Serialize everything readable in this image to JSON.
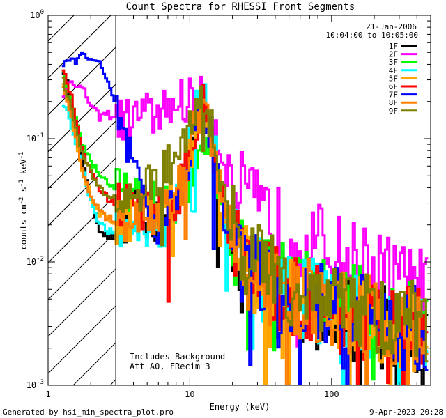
{
  "chart_data": {
    "type": "line",
    "title": "Count Spectra for RHESSI Front Segments",
    "xlabel": "Energy (keV)",
    "ylabel_main": "counts cm",
    "ylabel_sup1": "-2",
    "ylabel_mid": " s",
    "ylabel_sup2": "-1",
    "ylabel_end": " keV",
    "ylabel_sup3": "-1",
    "xscale": "log",
    "yscale": "log",
    "xlim": [
      1,
      500
    ],
    "ylim": [
      0.001,
      1
    ],
    "x_ticks": [
      {
        "value": 1,
        "label": "1"
      },
      {
        "value": 10,
        "label": "10"
      },
      {
        "value": 100,
        "label": "100"
      }
    ],
    "y_ticks": [
      {
        "value": 0.001,
        "mant": "10",
        "exp": "-3"
      },
      {
        "value": 0.01,
        "mant": "10",
        "exp": "-2"
      },
      {
        "value": 0.1,
        "mant": "10",
        "exp": "-1"
      },
      {
        "value": 1,
        "mant": "10",
        "exp": "0"
      }
    ],
    "date": "21-Jan-2006",
    "time_range": "10:04:00 to 10:05:00",
    "shaded_region_xmax": 3,
    "annotation_line1": "Includes Background",
    "annotation_line2": "Att A0, FRecim 3",
    "footer_left": "Generated by hsi_min_spectra_plot.pro",
    "footer_right": "9-Apr-2023 20:28",
    "series": [
      {
        "name": "1F",
        "color": "#000000",
        "values": [
          0.38,
          0.25,
          0.12,
          0.06,
          0.03,
          0.019,
          0.016,
          0.016,
          0.017,
          0.021,
          0.026,
          0.024,
          0.021,
          0.019,
          0.022,
          0.027,
          0.04,
          0.07,
          0.14,
          0.21,
          0.12,
          0.05,
          0.024,
          0.014,
          0.01,
          0.008,
          0.0068,
          0.0062,
          0.0057,
          0.0053,
          0.005,
          0.0048,
          0.0046,
          0.0044,
          0.0042,
          0.004,
          0.0038,
          0.0037,
          0.0036,
          0.0035,
          0.0034,
          0.0033,
          0.0032,
          0.0031,
          0.003,
          0.0029,
          0.0028,
          0.0027,
          0.0026,
          0.0025
        ]
      },
      {
        "name": "2F",
        "color": "#ff00ff",
        "values": [
          0.2,
          0.3,
          0.28,
          0.24,
          0.18,
          0.15,
          0.16,
          0.15,
          0.14,
          0.14,
          0.15,
          0.16,
          0.15,
          0.16,
          0.18,
          0.19,
          0.2,
          0.21,
          0.21,
          0.2,
          0.16,
          0.1,
          0.065,
          0.045,
          0.036,
          0.03,
          0.026,
          0.023,
          0.021,
          0.019,
          0.018,
          0.017,
          0.016,
          0.015,
          0.014,
          0.013,
          0.012,
          0.011,
          0.0105,
          0.01,
          0.0095,
          0.009,
          0.0085,
          0.008,
          0.0075,
          0.007,
          0.0066,
          0.0062,
          0.0058,
          0.0055
        ]
      },
      {
        "name": "3F",
        "color": "#00ff00",
        "values": [
          0.37,
          0.23,
          0.13,
          0.085,
          0.065,
          0.052,
          0.045,
          0.04,
          0.036,
          0.033,
          0.031,
          0.03,
          0.029,
          0.028,
          0.028,
          0.029,
          0.034,
          0.05,
          0.085,
          0.11,
          0.08,
          0.04,
          0.022,
          0.015,
          0.012,
          0.01,
          0.009,
          0.0083,
          0.0077,
          0.0072,
          0.0068,
          0.0064,
          0.0061,
          0.0058,
          0.0055,
          0.0052,
          0.005,
          0.0048,
          0.0046,
          0.0044,
          0.0042,
          0.004,
          0.0038,
          0.0037,
          0.0036,
          0.0035,
          0.0034,
          0.0033,
          0.0032,
          0.0031
        ]
      },
      {
        "name": "4F",
        "color": "#00ffff",
        "values": [
          0.2,
          0.15,
          0.09,
          0.05,
          0.03,
          0.021,
          0.018,
          0.017,
          0.017,
          0.018,
          0.02,
          0.021,
          0.02,
          0.019,
          0.021,
          0.026,
          0.038,
          0.075,
          0.16,
          0.25,
          0.13,
          0.05,
          0.024,
          0.014,
          0.01,
          0.0085,
          0.0075,
          0.007,
          0.0066,
          0.0062,
          0.0059,
          0.0056,
          0.0053,
          0.005,
          0.0048,
          0.0046,
          0.0044,
          0.0042,
          0.004,
          0.0038,
          0.0037,
          0.0036,
          0.0035,
          0.0034,
          0.0033,
          0.0032,
          0.0031,
          0.003,
          0.0029,
          0.0028
        ]
      },
      {
        "name": "5F",
        "color": "#ffa500",
        "values": [
          0.28,
          0.18,
          0.09,
          0.05,
          0.032,
          0.025,
          0.022,
          0.021,
          0.021,
          0.022,
          0.024,
          0.025,
          0.024,
          0.023,
          0.025,
          0.03,
          0.042,
          0.07,
          0.13,
          0.18,
          0.1,
          0.045,
          0.022,
          0.014,
          0.01,
          0.0085,
          0.0075,
          0.0068,
          0.0062,
          0.0058,
          0.0055,
          0.0052,
          0.005,
          0.0048,
          0.0046,
          0.0044,
          0.0042,
          0.004,
          0.0038,
          0.0037,
          0.0036,
          0.0035,
          0.0034,
          0.0033,
          0.0032,
          0.0031,
          0.003,
          0.0029,
          0.0028,
          0.0027
        ]
      },
      {
        "name": "6F",
        "color": "#ff0000",
        "values": [
          0.4,
          0.26,
          0.13,
          0.075,
          0.05,
          0.04,
          0.034,
          0.031,
          0.029,
          0.028,
          0.028,
          0.028,
          0.027,
          0.026,
          0.027,
          0.031,
          0.042,
          0.07,
          0.13,
          0.19,
          0.11,
          0.048,
          0.024,
          0.015,
          0.011,
          0.009,
          0.008,
          0.0072,
          0.0066,
          0.0061,
          0.0057,
          0.0054,
          0.0051,
          0.0048,
          0.0046,
          0.0044,
          0.0042,
          0.004,
          0.0038,
          0.0037,
          0.0036,
          0.0035,
          0.0034,
          0.0033,
          0.0032,
          0.0031,
          0.003,
          0.0029,
          0.0028,
          0.0027
        ]
      },
      {
        "name": "7F",
        "color": "#0000ff",
        "values": [
          0.38,
          0.42,
          0.44,
          0.48,
          0.46,
          0.4,
          0.3,
          0.2,
          0.12,
          0.07,
          0.042,
          0.028,
          0.022,
          0.02,
          0.022,
          0.028,
          0.04,
          0.07,
          0.13,
          0.18,
          0.1,
          0.045,
          0.022,
          0.014,
          0.01,
          0.0085,
          0.0075,
          0.0068,
          0.0062,
          0.0058,
          0.0055,
          0.0052,
          0.005,
          0.0048,
          0.0046,
          0.0044,
          0.0042,
          0.004,
          0.0038,
          0.0037,
          0.0036,
          0.0035,
          0.0034,
          0.0033,
          0.0032,
          0.0031,
          0.003,
          0.0029,
          0.0028,
          0.0027
        ]
      },
      {
        "name": "8F",
        "color": "#ff8000",
        "values": [
          0.27,
          0.17,
          0.09,
          0.05,
          0.033,
          0.026,
          0.023,
          0.022,
          0.022,
          0.023,
          0.025,
          0.026,
          0.025,
          0.024,
          0.026,
          0.031,
          0.043,
          0.072,
          0.13,
          0.18,
          0.1,
          0.046,
          0.023,
          0.014,
          0.01,
          0.0085,
          0.0075,
          0.0068,
          0.0063,
          0.0059,
          0.0056,
          0.0053,
          0.005,
          0.0048,
          0.0046,
          0.0044,
          0.0042,
          0.004,
          0.0038,
          0.0037,
          0.0036,
          0.0035,
          0.0034,
          0.0033,
          0.0032,
          0.0031,
          0.003,
          0.0029,
          0.0028,
          0.0027
        ]
      },
      {
        "name": "9F",
        "color": "#808000",
        "values": [
          0.33,
          0.2,
          0.11,
          0.07,
          0.05,
          0.04,
          0.035,
          0.033,
          0.032,
          0.033,
          0.036,
          0.04,
          0.042,
          0.045,
          0.055,
          0.07,
          0.09,
          0.12,
          0.18,
          0.22,
          0.13,
          0.06,
          0.03,
          0.018,
          0.013,
          0.011,
          0.0095,
          0.0085,
          0.0078,
          0.0072,
          0.0067,
          0.0063,
          0.006,
          0.0057,
          0.0054,
          0.0051,
          0.0049,
          0.0047,
          0.0045,
          0.0043,
          0.0041,
          0.0039,
          0.0038,
          0.0037,
          0.0036,
          0.0035,
          0.0034,
          0.0033,
          0.0032,
          0.0031
        ]
      }
    ]
  }
}
